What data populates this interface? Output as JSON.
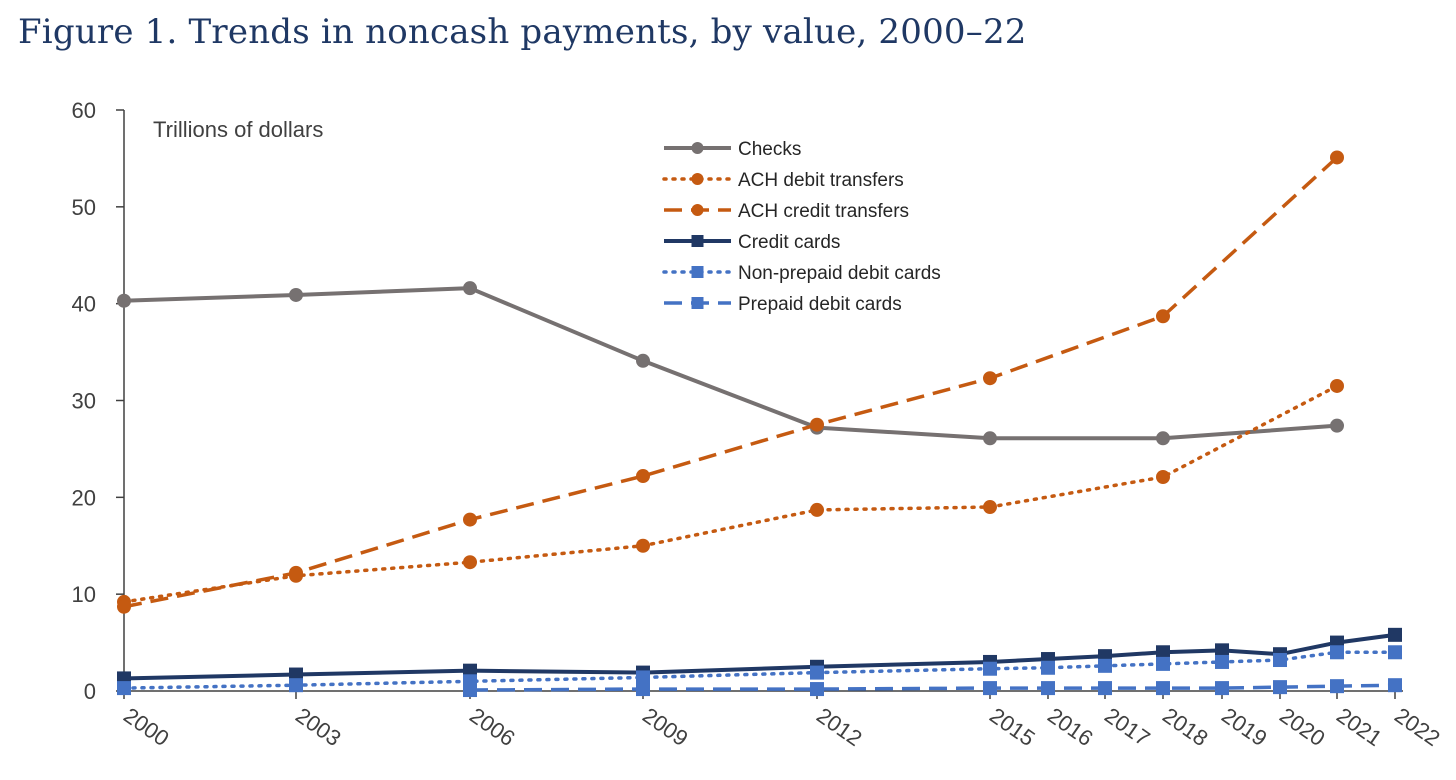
{
  "title": "Figure 1. Trends in noncash payments, by value, 2000–22",
  "chart_data": {
    "type": "line",
    "title": "Figure 1. Trends in noncash payments, by value, 2000–22",
    "ylabel": "Trillions of dollars",
    "xlabel": "",
    "ylim": [
      0,
      60
    ],
    "yticks": [
      0,
      10,
      20,
      30,
      40,
      50,
      60
    ],
    "x_ticks": [
      "2000",
      "2003",
      "2006",
      "2009",
      "2012",
      "2015",
      "2016",
      "2017",
      "2018",
      "2019",
      "2020",
      "2021",
      "2022"
    ],
    "legend_position": "top-center",
    "grid": false,
    "series": [
      {
        "name": "Checks",
        "color": "#767171",
        "style": "solid",
        "marker": "circle",
        "points": [
          [
            "2000",
            40.3
          ],
          [
            "2003",
            40.9
          ],
          [
            "2006",
            41.6
          ],
          [
            "2009",
            34.1
          ],
          [
            "2012",
            27.2
          ],
          [
            "2015",
            26.1
          ],
          [
            "2018",
            26.1
          ],
          [
            "2021",
            27.4
          ]
        ]
      },
      {
        "name": "ACH debit transfers",
        "color": "#c55a11",
        "style": "dotted",
        "marker": "circle",
        "points": [
          [
            "2000",
            9.2
          ],
          [
            "2003",
            11.9
          ],
          [
            "2006",
            13.3
          ],
          [
            "2009",
            15.0
          ],
          [
            "2012",
            18.7
          ],
          [
            "2015",
            19.0
          ],
          [
            "2018",
            22.1
          ],
          [
            "2021",
            31.5
          ]
        ]
      },
      {
        "name": "ACH credit transfers",
        "color": "#c55a11",
        "style": "dashed",
        "marker": "circle",
        "points": [
          [
            "2000",
            8.7
          ],
          [
            "2003",
            12.2
          ],
          [
            "2006",
            17.7
          ],
          [
            "2009",
            22.2
          ],
          [
            "2012",
            27.5
          ],
          [
            "2015",
            32.3
          ],
          [
            "2018",
            38.7
          ],
          [
            "2021",
            55.1
          ]
        ]
      },
      {
        "name": "Credit cards",
        "color": "#203864",
        "style": "solid",
        "marker": "square",
        "points": [
          [
            "2000",
            1.3
          ],
          [
            "2003",
            1.7
          ],
          [
            "2006",
            2.1
          ],
          [
            "2009",
            1.9
          ],
          [
            "2012",
            2.5
          ],
          [
            "2015",
            3.0
          ],
          [
            "2016",
            3.3
          ],
          [
            "2017",
            3.6
          ],
          [
            "2018",
            4.0
          ],
          [
            "2019",
            4.2
          ],
          [
            "2020",
            3.8
          ],
          [
            "2021",
            5.0
          ],
          [
            "2022",
            5.8
          ]
        ]
      },
      {
        "name": "Non-prepaid debit cards",
        "color": "#4472c4",
        "style": "dotted",
        "marker": "square",
        "points": [
          [
            "2000",
            0.3
          ],
          [
            "2003",
            0.6
          ],
          [
            "2006",
            1.0
          ],
          [
            "2009",
            1.4
          ],
          [
            "2012",
            1.9
          ],
          [
            "2015",
            2.3
          ],
          [
            "2016",
            2.4
          ],
          [
            "2017",
            2.6
          ],
          [
            "2018",
            2.8
          ],
          [
            "2019",
            3.0
          ],
          [
            "2020",
            3.2
          ],
          [
            "2021",
            4.0
          ],
          [
            "2022",
            4.0
          ]
        ]
      },
      {
        "name": "Prepaid debit cards",
        "color": "#4472c4",
        "style": "dashed",
        "marker": "square",
        "points": [
          [
            "2006",
            0.1
          ],
          [
            "2009",
            0.2
          ],
          [
            "2012",
            0.2
          ],
          [
            "2015",
            0.3
          ],
          [
            "2016",
            0.3
          ],
          [
            "2017",
            0.3
          ],
          [
            "2018",
            0.3
          ],
          [
            "2019",
            0.3
          ],
          [
            "2020",
            0.4
          ],
          [
            "2021",
            0.5
          ],
          [
            "2022",
            0.6
          ]
        ]
      }
    ]
  }
}
